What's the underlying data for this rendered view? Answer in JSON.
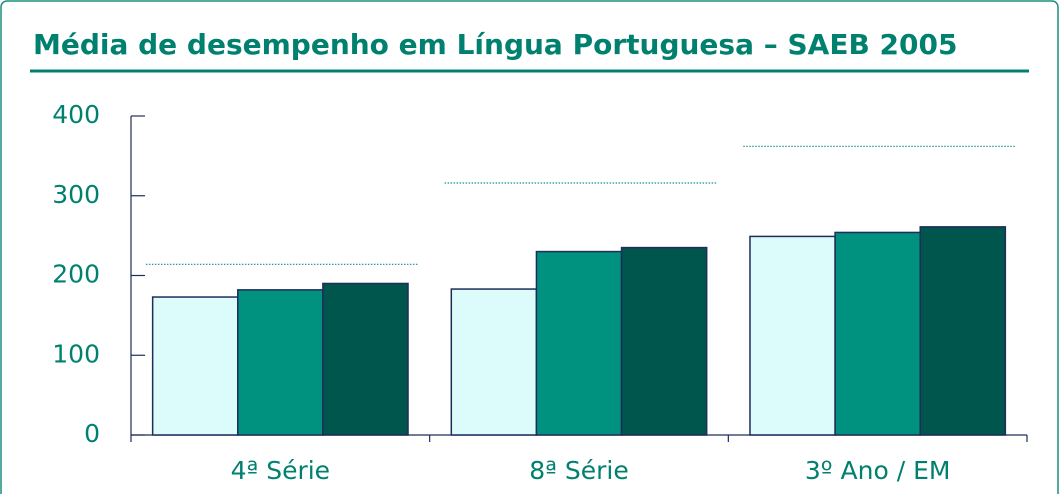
{
  "chart_data": {
    "type": "bar",
    "title": "Média de desempenho em Língua Portuguesa – SAEB 2005",
    "categories": [
      "4ª Série",
      "8ª Série",
      "3º Ano / EM"
    ],
    "series": [
      {
        "color": "#dcfcfc",
        "values": [
          173,
          183,
          249
        ]
      },
      {
        "color": "#00917f",
        "values": [
          182,
          230,
          254
        ]
      },
      {
        "color": "#00554d",
        "values": [
          190,
          235,
          261
        ]
      }
    ],
    "targets": [
      214,
      316,
      362
    ],
    "target_color": "#1a8f8f",
    "ylim": [
      0,
      400
    ],
    "yticks": [
      0,
      100,
      200,
      300,
      400
    ],
    "grid": false
  }
}
